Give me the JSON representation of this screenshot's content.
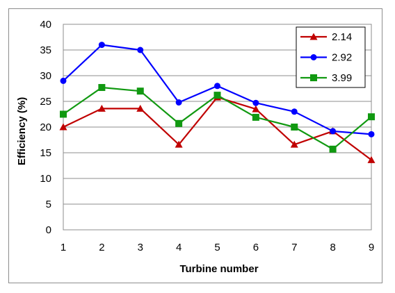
{
  "chart_data": {
    "type": "line",
    "title": "",
    "xlabel": "Turbine number",
    "ylabel": "Efficiency (%)",
    "x": [
      1,
      2,
      3,
      4,
      5,
      6,
      7,
      8,
      9
    ],
    "xticks": [
      "1",
      "2",
      "3",
      "4",
      "5",
      "6",
      "7",
      "8",
      "9"
    ],
    "xlim": [
      1,
      9
    ],
    "ylim": [
      0,
      40
    ],
    "yticks": [
      "0",
      "5",
      "10",
      "15",
      "20",
      "25",
      "30",
      "35",
      "40"
    ],
    "ytick_values": [
      0,
      5,
      10,
      15,
      20,
      25,
      30,
      35,
      40
    ],
    "grid": "horizontal",
    "legend_position": "top-right",
    "series": [
      {
        "name": "2.14",
        "color": "#c00000",
        "marker": "triangle",
        "values": [
          20.0,
          23.6,
          23.6,
          16.6,
          25.8,
          23.5,
          16.6,
          19.2,
          13.6
        ]
      },
      {
        "name": "2.92",
        "color": "#0000ff",
        "marker": "circle",
        "values": [
          29.0,
          36.0,
          35.0,
          24.8,
          28.0,
          24.7,
          23.0,
          19.2,
          18.6
        ]
      },
      {
        "name": "3.99",
        "color": "#119911",
        "marker": "square",
        "values": [
          22.5,
          27.7,
          27.0,
          20.7,
          26.2,
          21.9,
          20.0,
          15.7,
          22.0
        ]
      }
    ]
  }
}
